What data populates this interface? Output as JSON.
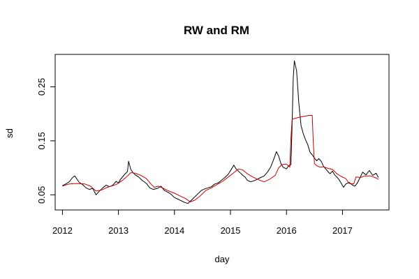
{
  "chart_data": {
    "type": "line",
    "title": "RW and RM",
    "xlabel": "day",
    "ylabel": "sd",
    "xlim": [
      2011.87,
      2017.83
    ],
    "ylim": [
      0.022,
      0.31
    ],
    "xticks": [
      2012,
      2013,
      2014,
      2015,
      2016,
      2017
    ],
    "xtick_labels": [
      "2012",
      "2013",
      "2014",
      "2015",
      "2016",
      "2017"
    ],
    "yticks": [
      0.05,
      0.15,
      0.25
    ],
    "ytick_labels": [
      "0.05",
      "0.15",
      "0.25"
    ],
    "grid": false,
    "legend": "none",
    "series": [
      {
        "color": "#000000",
        "x": [
          2012.0,
          2012.06,
          2012.12,
          2012.18,
          2012.22,
          2012.26,
          2012.3,
          2012.36,
          2012.42,
          2012.48,
          2012.54,
          2012.6,
          2012.66,
          2012.72,
          2012.78,
          2012.84,
          2012.9,
          2012.96,
          2013.0,
          2013.04,
          2013.08,
          2013.12,
          2013.16,
          2013.18,
          2013.22,
          2013.26,
          2013.3,
          2013.36,
          2013.42,
          2013.5,
          2013.56,
          2013.62,
          2013.7,
          2013.76,
          2013.82,
          2013.88,
          2013.94,
          2014.0,
          2014.06,
          2014.12,
          2014.18,
          2014.24,
          2014.3,
          2014.36,
          2014.42,
          2014.48,
          2014.54,
          2014.6,
          2014.66,
          2014.72,
          2014.78,
          2014.84,
          2014.9,
          2014.96,
          2015.02,
          2015.06,
          2015.1,
          2015.16,
          2015.22,
          2015.26,
          2015.3,
          2015.36,
          2015.42,
          2015.48,
          2015.54,
          2015.6,
          2015.66,
          2015.72,
          2015.78,
          2015.82,
          2015.86,
          2015.9,
          2015.94,
          2016.0,
          2016.04,
          2016.08,
          2016.1,
          2016.12,
          2016.14,
          2016.18,
          2016.22,
          2016.26,
          2016.3,
          2016.34,
          2016.38,
          2016.42,
          2016.46,
          2016.5,
          2016.54,
          2016.58,
          2016.62,
          2016.66,
          2016.7,
          2016.74,
          2016.78,
          2016.82,
          2016.86,
          2016.9,
          2016.94,
          2016.98,
          2017.02,
          2017.06,
          2017.12,
          2017.18,
          2017.22,
          2017.26,
          2017.3,
          2017.36,
          2017.42,
          2017.48,
          2017.54,
          2017.6,
          2017.64
        ],
        "y": [
          0.067,
          0.07,
          0.074,
          0.082,
          0.085,
          0.079,
          0.073,
          0.069,
          0.063,
          0.06,
          0.062,
          0.05,
          0.057,
          0.063,
          0.068,
          0.065,
          0.068,
          0.075,
          0.072,
          0.079,
          0.084,
          0.089,
          0.093,
          0.112,
          0.097,
          0.091,
          0.087,
          0.083,
          0.077,
          0.071,
          0.063,
          0.06,
          0.062,
          0.066,
          0.058,
          0.055,
          0.051,
          0.045,
          0.042,
          0.039,
          0.036,
          0.034,
          0.04,
          0.046,
          0.052,
          0.058,
          0.061,
          0.063,
          0.065,
          0.07,
          0.072,
          0.077,
          0.082,
          0.088,
          0.098,
          0.105,
          0.098,
          0.092,
          0.086,
          0.083,
          0.077,
          0.074,
          0.076,
          0.079,
          0.082,
          0.085,
          0.092,
          0.102,
          0.118,
          0.13,
          0.122,
          0.108,
          0.101,
          0.098,
          0.104,
          0.106,
          0.18,
          0.266,
          0.298,
          0.28,
          0.22,
          0.178,
          0.163,
          0.152,
          0.143,
          0.129,
          0.124,
          0.118,
          0.113,
          0.117,
          0.112,
          0.103,
          0.098,
          0.093,
          0.089,
          0.094,
          0.087,
          0.083,
          0.078,
          0.071,
          0.064,
          0.07,
          0.073,
          0.068,
          0.066,
          0.071,
          0.079,
          0.092,
          0.087,
          0.095,
          0.086,
          0.09,
          0.082
        ]
      },
      {
        "color": "#cc0000",
        "x": [
          2012.0,
          2012.05,
          2012.12,
          2012.25,
          2012.4,
          2012.5,
          2012.6,
          2012.7,
          2012.8,
          2012.9,
          2012.98,
          2013.06,
          2013.14,
          2013.22,
          2013.3,
          2013.4,
          2013.5,
          2013.58,
          2013.64,
          2013.72,
          2013.8,
          2013.9,
          2014.0,
          2014.1,
          2014.2,
          2014.28,
          2014.36,
          2014.46,
          2014.56,
          2014.66,
          2014.76,
          2014.86,
          2014.96,
          2015.06,
          2015.14,
          2015.22,
          2015.3,
          2015.4,
          2015.5,
          2015.6,
          2015.7,
          2015.8,
          2015.86,
          2015.92,
          2016.0,
          2016.06,
          2016.08,
          2016.1,
          2016.2,
          2016.3,
          2016.4,
          2016.46,
          2016.48,
          2016.5,
          2016.54,
          2016.6,
          2016.66,
          2016.74,
          2016.82,
          2016.9,
          2016.98,
          2017.06,
          2017.12,
          2017.2,
          2017.24,
          2017.32,
          2017.4,
          2017.5,
          2017.58,
          2017.64
        ],
        "y": [
          0.066,
          0.068,
          0.07,
          0.071,
          0.07,
          0.066,
          0.057,
          0.059,
          0.064,
          0.067,
          0.07,
          0.076,
          0.083,
          0.091,
          0.09,
          0.086,
          0.08,
          0.07,
          0.064,
          0.066,
          0.062,
          0.057,
          0.053,
          0.048,
          0.043,
          0.037,
          0.04,
          0.048,
          0.058,
          0.063,
          0.069,
          0.075,
          0.083,
          0.091,
          0.098,
          0.096,
          0.089,
          0.083,
          0.078,
          0.074,
          0.079,
          0.086,
          0.1,
          0.106,
          0.107,
          0.101,
          0.155,
          0.19,
          0.193,
          0.195,
          0.197,
          0.197,
          0.145,
          0.108,
          0.104,
          0.101,
          0.102,
          0.099,
          0.097,
          0.089,
          0.084,
          0.08,
          0.071,
          0.07,
          0.083,
          0.082,
          0.085,
          0.085,
          0.082,
          0.079
        ]
      }
    ]
  }
}
